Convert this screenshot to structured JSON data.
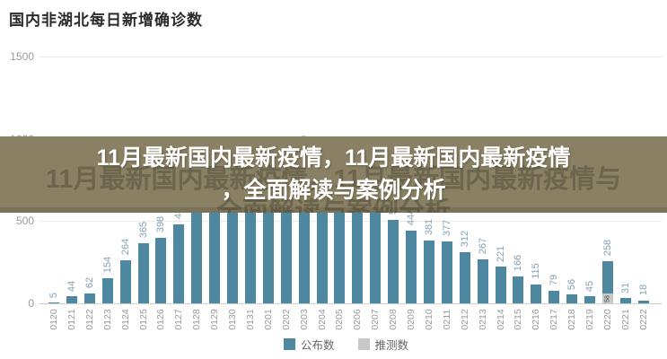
{
  "chart": {
    "title": "国内非湖北每日新增确诊数"
  },
  "overlay": {
    "line1": "11月最新国内最新疫情，11月最新国内最新疫情",
    "line2": "，全面解读与案例分析",
    "watermark_line1": "11月最新国内最新疫情，11月最新国内最新疫情与",
    "watermark_line2": "全面解读与案例分析"
  },
  "colors": {
    "bar_announced": "#4e87a0",
    "bar_inferred": "#c7c9c8",
    "value_label": "#86a1b2",
    "axis_text": "#9a9a9a",
    "overlay_band": "#8a8164",
    "overlay_text": "#ffffff"
  },
  "chart_data": {
    "type": "bar",
    "title": "国内非湖北每日新增确诊数",
    "x": [
      "0120",
      "0121",
      "0122",
      "0123",
      "0124",
      "0125",
      "0126",
      "0127",
      "0128",
      "0129",
      "0130",
      "0131",
      "0201",
      "0202",
      "0203",
      "0204",
      "0205",
      "0206",
      "0207",
      "0208",
      "0209",
      "0210",
      "0211",
      "0212",
      "0213",
      "0214",
      "0215",
      "0216",
      "0217",
      "0218",
      "0219",
      "0220",
      "0221",
      "0222"
    ],
    "values": [
      5,
      44,
      62,
      154,
      264,
      365,
      398,
      480,
      619,
      705,
      762,
      755,
      669,
      726,
      890,
      731,
      707,
      696,
      558,
      509,
      444,
      381,
      377,
      312,
      267,
      221,
      166,
      115,
      79,
      56,
      45,
      258,
      31,
      18
    ],
    "visible_value_labels": [
      "5",
      "44",
      "62",
      "154",
      "264",
      "365",
      "398",
      "480",
      "619",
      "890",
      "381",
      "377",
      "312",
      "267",
      "221",
      "166",
      "115",
      "79",
      "56",
      "45",
      "258",
      "31",
      "18"
    ],
    "stacked_bar": {
      "index": 31,
      "category": "0220",
      "announced": 200,
      "inferred": 58,
      "inferred_label": "58"
    },
    "ylim": [
      0,
      1500
    ],
    "yticks": [
      0,
      500,
      1000,
      1500
    ],
    "grid": true,
    "legend_position": "bottom-center",
    "legend": [
      {
        "label": "公布数",
        "color": "#4e87a0"
      },
      {
        "label": "推测数",
        "color": "#c7c9c8"
      }
    ]
  }
}
